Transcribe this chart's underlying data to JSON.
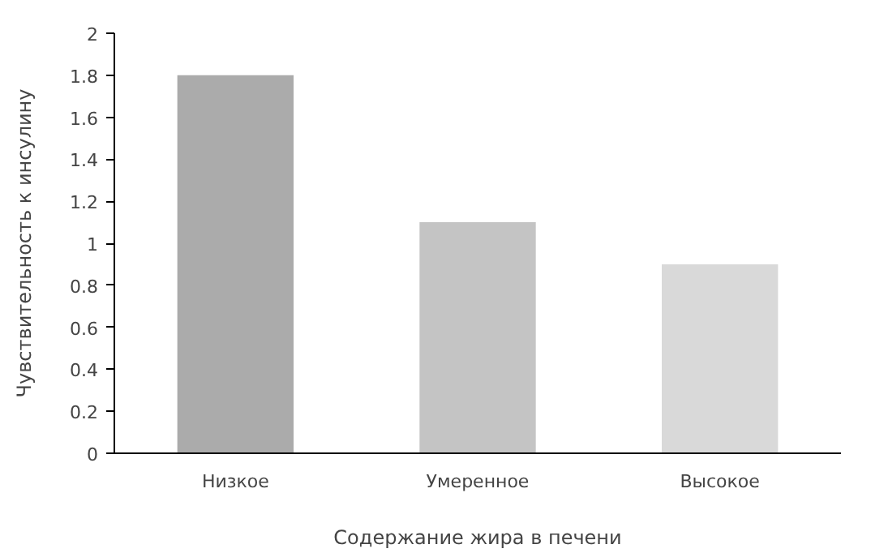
{
  "chart_data": {
    "type": "bar",
    "xlabel": "Содержание жира в печени",
    "ylabel": "Чувствительность к инсулину",
    "categories": [
      "Низкое",
      "Умеренное",
      "Высокое"
    ],
    "values": [
      1.8,
      1.1,
      0.9
    ],
    "colors": [
      "#ababab",
      "#c4c4c4",
      "#d9d9d9"
    ],
    "ylim": [
      0,
      2
    ],
    "yticks": [
      0,
      0.2,
      0.4,
      0.6,
      0.8,
      1,
      1.2,
      1.4,
      1.6,
      1.8,
      2
    ],
    "grid": false
  }
}
